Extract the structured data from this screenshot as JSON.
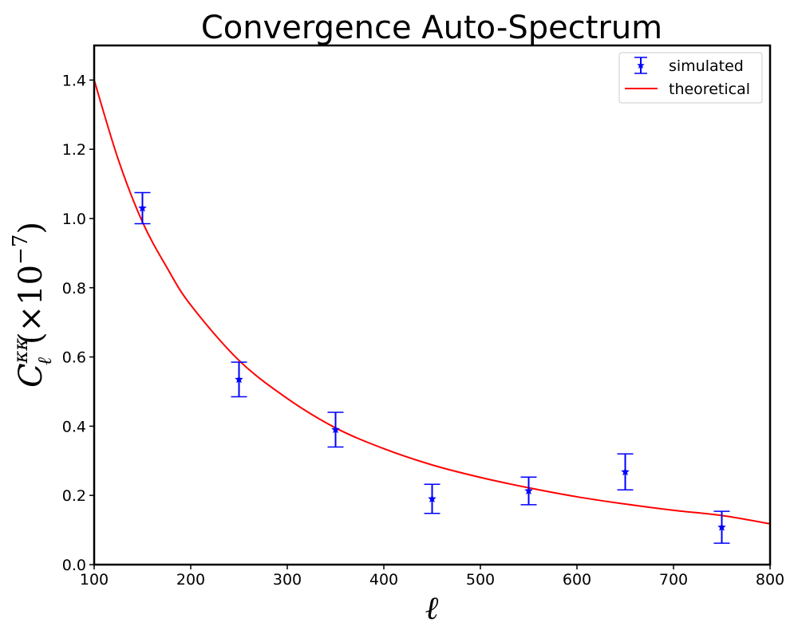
{
  "chart_data": {
    "type": "scatter",
    "title": "Convergence Auto-Spectrum",
    "xlabel": "ℓ",
    "ylabel": {
      "symbol": "C",
      "superscript": "κκ",
      "subscript": "ℓ",
      "suffix": "(×10",
      "exponent": "−7",
      "close": ")"
    },
    "xlim": [
      100,
      800
    ],
    "ylim": [
      0.0,
      1.5
    ],
    "xticks": [
      100,
      200,
      300,
      400,
      500,
      600,
      700,
      800
    ],
    "yticks": [
      0.0,
      0.2,
      0.4,
      0.6,
      0.8,
      1.0,
      1.2,
      1.4
    ],
    "xtick_labels": [
      "100",
      "200",
      "300",
      "400",
      "500",
      "600",
      "700",
      "800"
    ],
    "ytick_labels": [
      "0.0",
      "0.2",
      "0.4",
      "0.6",
      "0.8",
      "1.0",
      "1.2",
      "1.4"
    ],
    "grid": false,
    "legend_position": "top-right",
    "series": [
      {
        "name": "simulated",
        "kind": "errorbar",
        "marker": "star",
        "color": "#0000ff",
        "x": [
          150,
          250,
          350,
          450,
          550,
          650,
          750
        ],
        "y": [
          1.03,
          0.535,
          0.39,
          0.19,
          0.213,
          0.268,
          0.108
        ],
        "yerr": [
          0.045,
          0.05,
          0.05,
          0.042,
          0.04,
          0.052,
          0.046
        ]
      },
      {
        "name": "theoretical",
        "kind": "line",
        "color": "#ff0000",
        "x": [
          100,
          125,
          150,
          175,
          200,
          250,
          300,
          350,
          400,
          450,
          500,
          550,
          600,
          650,
          700,
          750,
          800
        ],
        "y": [
          1.4,
          1.17,
          0.99,
          0.86,
          0.75,
          0.59,
          0.48,
          0.395,
          0.335,
          0.288,
          0.252,
          0.222,
          0.196,
          0.175,
          0.157,
          0.142,
          0.118
        ]
      }
    ]
  }
}
